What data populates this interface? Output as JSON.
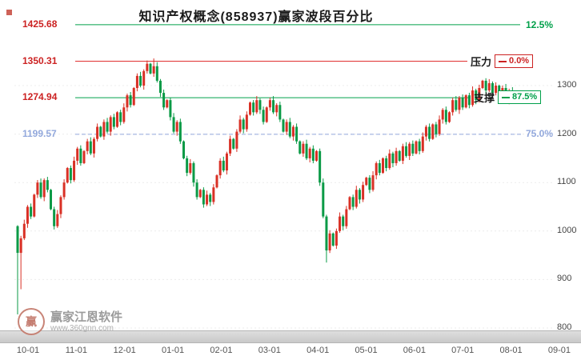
{
  "title": "知识产权概念(858937)赢家波段百分比",
  "watermark": {
    "brand": "赢家江恩软件",
    "url": "www.360gnn.com",
    "logo_glyph": "赢"
  },
  "colors": {
    "up": "#d93025",
    "down": "#0a9a46",
    "red_label": "#cc2222",
    "green_label": "#00a04a",
    "blue_label": "#92a8dc",
    "grid": "#ececec",
    "axis_text": "#555555"
  },
  "chart_data": {
    "type": "candlestick",
    "title": "知识产权概念(858937)赢家波段百分比",
    "ylim": [
      800,
      1430
    ],
    "y_ticks": [
      1300,
      1200,
      1100,
      1000,
      900,
      800
    ],
    "x_ticks": [
      "10-01",
      "11-01",
      "12-01",
      "01-01",
      "02-01",
      "03-01",
      "04-01",
      "05-01",
      "06-01",
      "07-01",
      "08-01",
      "09-01"
    ],
    "levels": [
      {
        "price": 1425.68,
        "type": "fib",
        "pct": "12.5%",
        "color": "#00a04a",
        "x_end": 650,
        "dashed": false
      },
      {
        "price": 1350.31,
        "type": "resistance",
        "label": "压力",
        "pct": "0.0%",
        "color": "#e03030",
        "x_end": 584,
        "dashed": false
      },
      {
        "price": 1274.94,
        "type": "support",
        "label": "支撑",
        "pct": "87.5%",
        "color": "#00a04a",
        "x_end": 588,
        "dashed": false
      },
      {
        "price": 1199.57,
        "type": "fib",
        "pct": "75.0%",
        "color": "#92a8dc",
        "x_end": 652,
        "dashed": true
      }
    ],
    "series": [
      {
        "name": "daily_price",
        "open_first": 1010,
        "closes": [
          955,
          985,
          1015,
          1050,
          1030,
          1075,
          1100,
          1070,
          1105,
          1085,
          1045,
          1010,
          1035,
          1070,
          1100,
          1130,
          1105,
          1145,
          1170,
          1140,
          1165,
          1185,
          1160,
          1190,
          1215,
          1195,
          1225,
          1205,
          1235,
          1215,
          1245,
          1225,
          1255,
          1280,
          1260,
          1295,
          1320,
          1300,
          1330,
          1345,
          1325,
          1340,
          1310,
          1285,
          1255,
          1270,
          1235,
          1205,
          1225,
          1185,
          1150,
          1120,
          1140,
          1100,
          1070,
          1085,
          1055,
          1075,
          1060,
          1090,
          1115,
          1145,
          1125,
          1160,
          1190,
          1170,
          1205,
          1230,
          1210,
          1240,
          1265,
          1245,
          1270,
          1250,
          1225,
          1255,
          1270,
          1245,
          1260,
          1230,
          1205,
          1225,
          1195,
          1215,
          1185,
          1160,
          1180,
          1150,
          1170,
          1145,
          1165,
          1100,
          1030,
          960,
          995,
          970,
          1000,
          1030,
          1010,
          1045,
          1070,
          1050,
          1085,
          1065,
          1095,
          1110,
          1085,
          1115,
          1140,
          1120,
          1150,
          1130,
          1160,
          1140,
          1165,
          1145,
          1175,
          1155,
          1180,
          1160,
          1185,
          1165,
          1195,
          1215,
          1190,
          1220,
          1200,
          1230,
          1250,
          1225,
          1245,
          1270,
          1250,
          1275,
          1255,
          1280,
          1260,
          1290,
          1270,
          1295,
          1310,
          1290,
          1305,
          1285,
          1300,
          1280,
          1295,
          1270,
          1290,
          1280
        ],
        "wick_overrides": {
          "0": {
            "low": 828
          },
          "1": {
            "low": 880
          },
          "41": {
            "high": 1356
          },
          "93": {
            "low": 935
          }
        }
      }
    ]
  }
}
